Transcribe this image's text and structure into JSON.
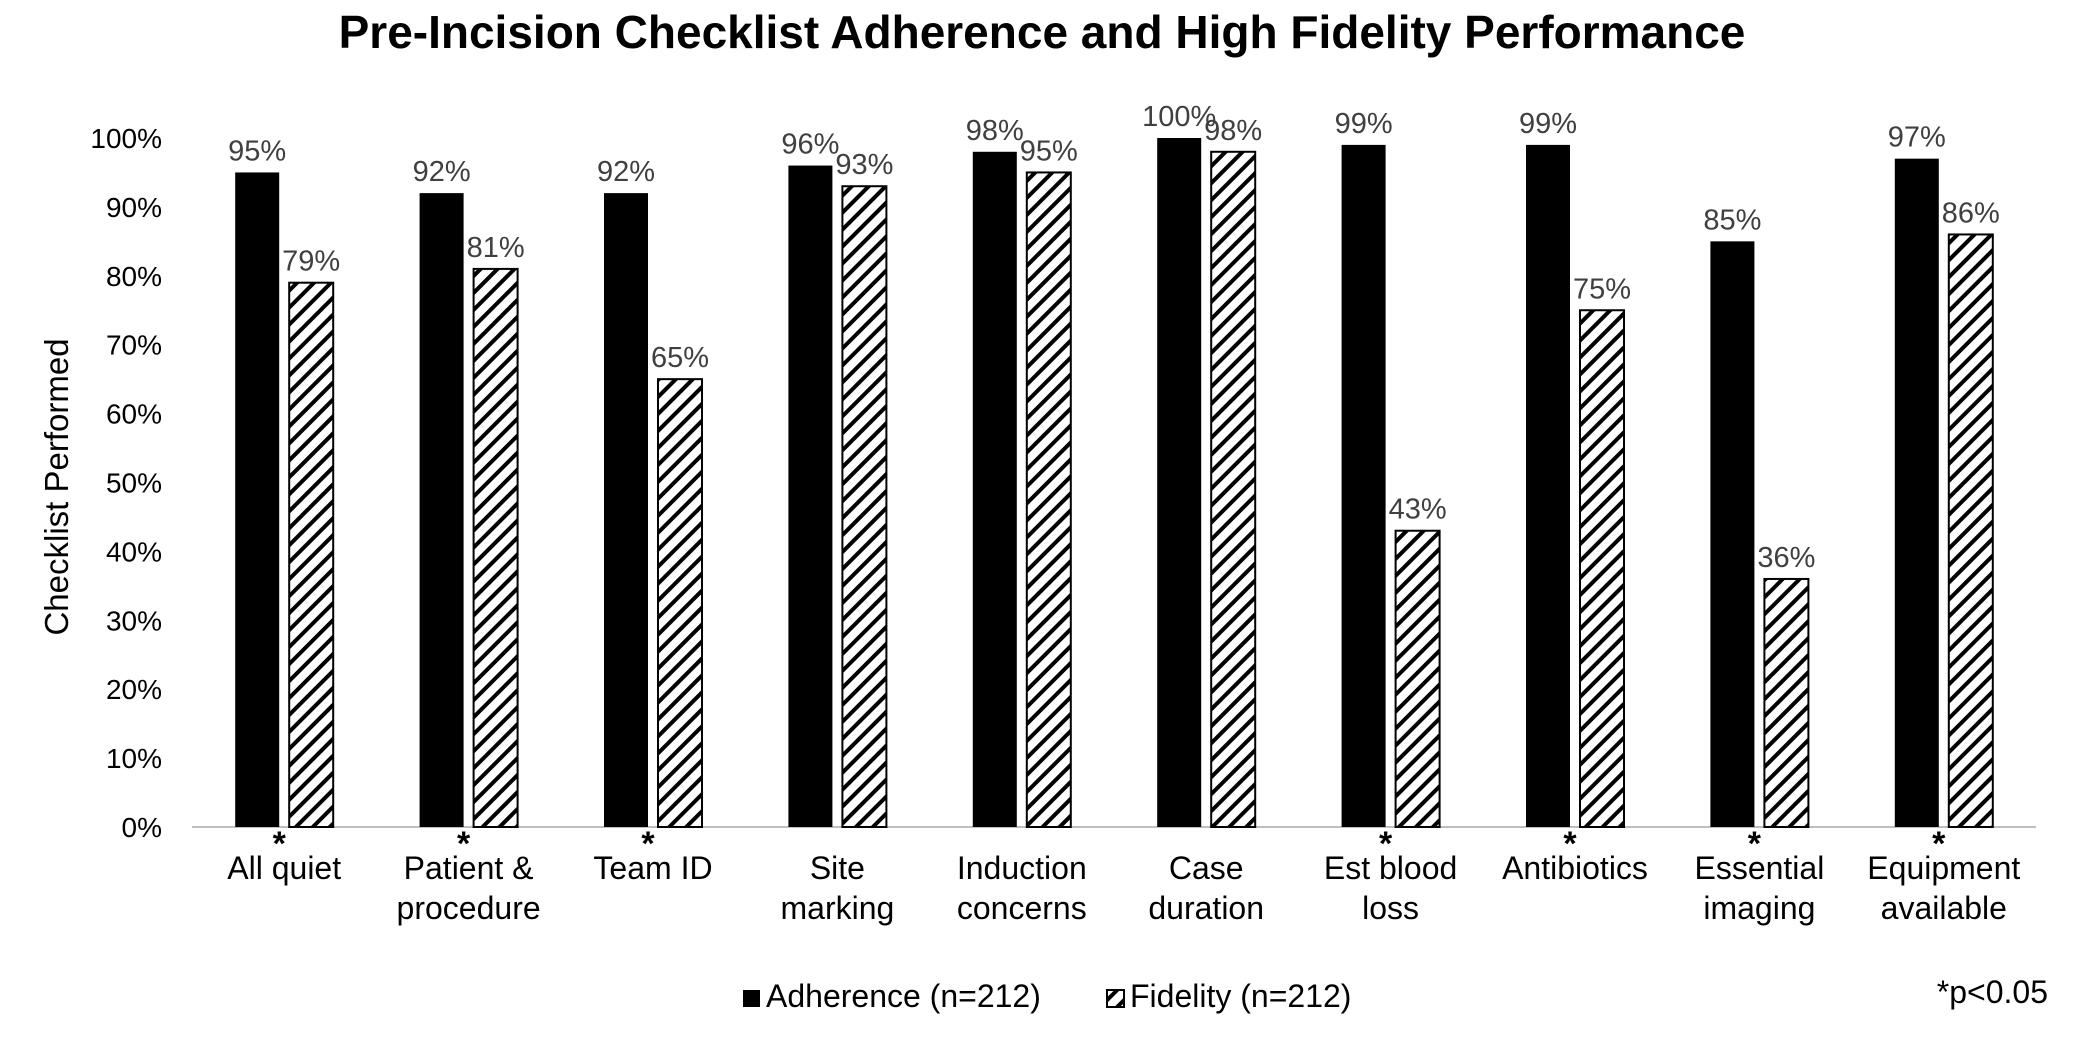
{
  "chart_data": {
    "type": "bar",
    "title": "Pre-Incision Checklist Adherence and High Fidelity Performance",
    "ylabel": "Checklist Performed",
    "xlabel": "",
    "ylim": [
      0,
      100
    ],
    "yticks": [
      "0%",
      "10%",
      "20%",
      "30%",
      "40%",
      "50%",
      "60%",
      "70%",
      "80%",
      "90%",
      "100%"
    ],
    "categories": [
      [
        "All quiet"
      ],
      [
        "Patient &",
        "procedure"
      ],
      [
        "Team ID"
      ],
      [
        "Site",
        "marking"
      ],
      [
        "Induction",
        "concerns"
      ],
      [
        "Case",
        "duration"
      ],
      [
        "Est blood",
        "loss"
      ],
      [
        "Antibiotics"
      ],
      [
        "Essential",
        "imaging"
      ],
      [
        "Equipment",
        "available"
      ]
    ],
    "significant": [
      true,
      true,
      true,
      false,
      false,
      false,
      true,
      true,
      true,
      true
    ],
    "significance_marker": "*",
    "series": [
      {
        "name": "Adherence (n=212)",
        "values": [
          95,
          92,
          92,
          96,
          98,
          100,
          99,
          99,
          85,
          97
        ],
        "labels": [
          "95%",
          "92%",
          "92%",
          "96%",
          "98%",
          "100%",
          "99%",
          "99%",
          "85%",
          "97%"
        ],
        "fill": "solid",
        "color": "#000000"
      },
      {
        "name": "Fidelity (n=212)",
        "values": [
          79,
          81,
          65,
          93,
          95,
          98,
          43,
          75,
          36,
          86
        ],
        "labels": [
          "79%",
          "81%",
          "65%",
          "93%",
          "95%",
          "98%",
          "43%",
          "75%",
          "36%",
          "86%"
        ],
        "fill": "hatched",
        "color": "#000000"
      }
    ],
    "grid": false,
    "legend_position": "bottom",
    "footnote": "*p<0.05"
  }
}
